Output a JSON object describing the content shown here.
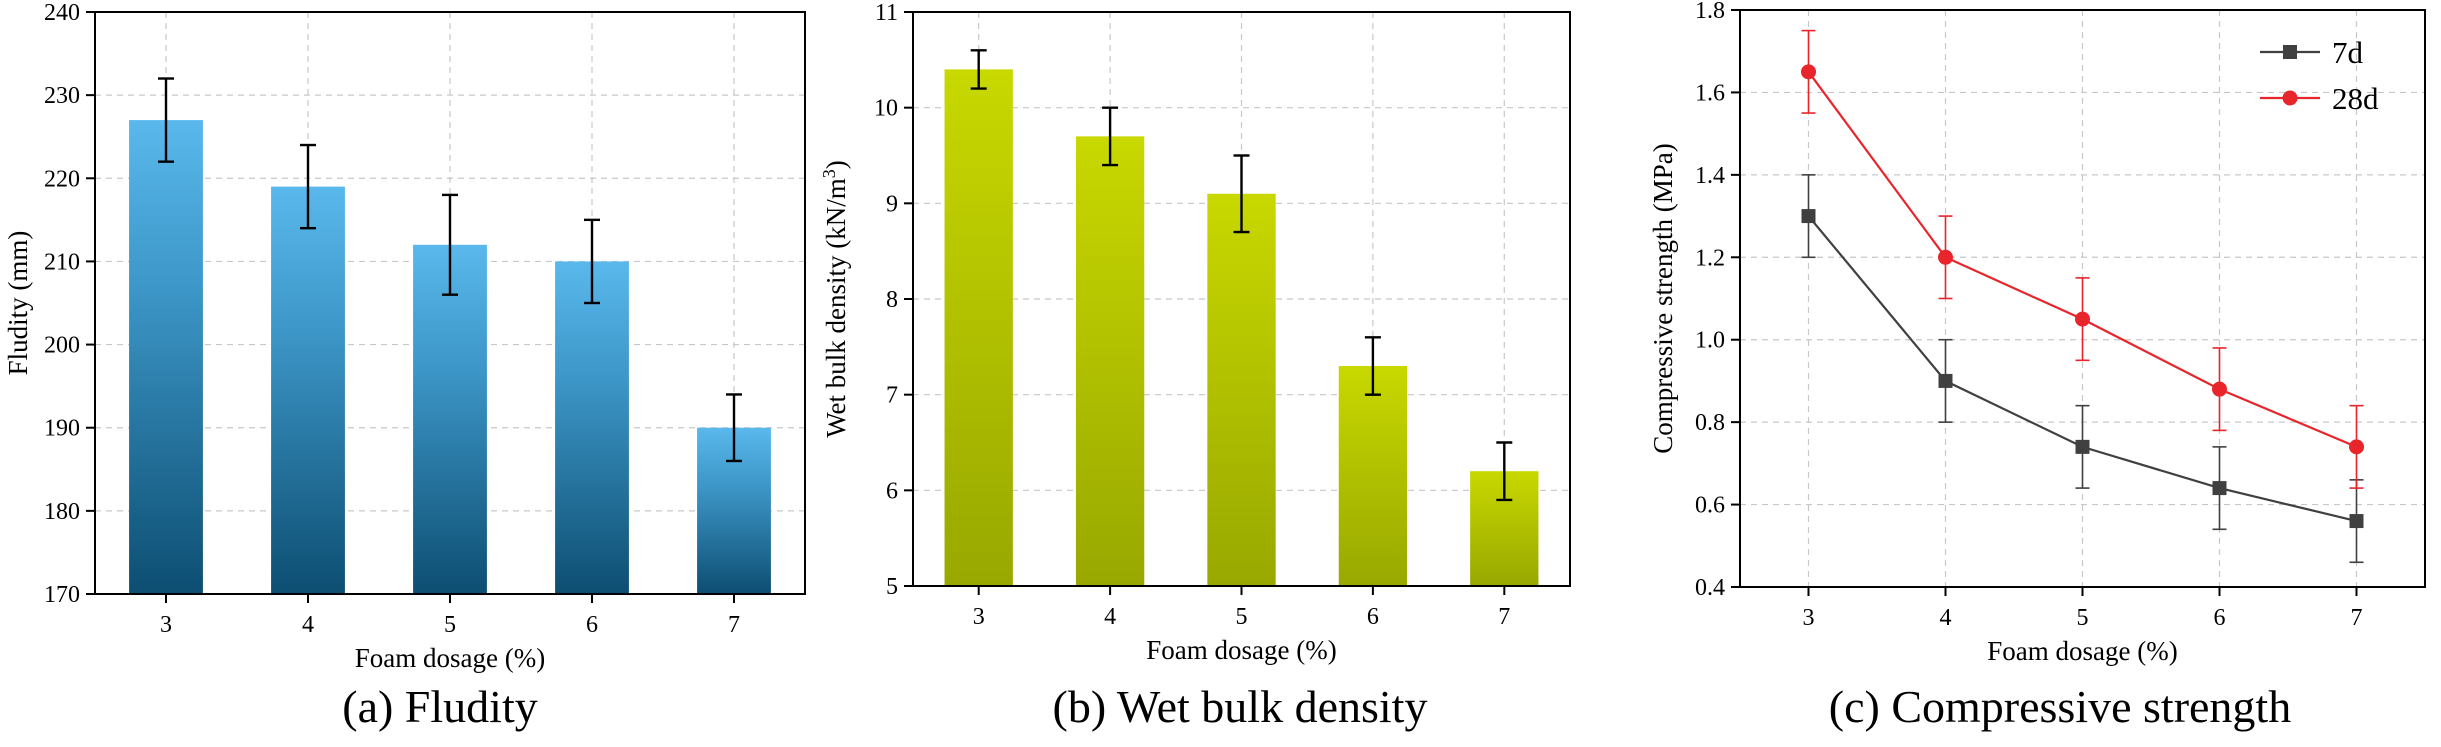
{
  "chart_data": [
    {
      "type": "bar",
      "caption": "(a) Fludity",
      "xlabel": "Foam dosage (%)",
      "ylabel": "Fludity (mm)",
      "categories": [
        "3",
        "4",
        "5",
        "6",
        "7"
      ],
      "values": [
        227,
        219,
        212,
        210,
        190
      ],
      "errors": [
        5,
        5,
        6,
        5,
        4
      ],
      "ylim": [
        170,
        240
      ],
      "yticks": [
        "170",
        "180",
        "190",
        "200",
        "210",
        "220",
        "230",
        "240"
      ],
      "grid": true,
      "colors": {
        "bar_top": "#5ab8ec",
        "bar_bottom": "#0d4e72"
      }
    },
    {
      "type": "bar",
      "caption": "(b) Wet bulk density",
      "xlabel": "Foam dosage (%)",
      "ylabel": "Wet bulk density (kN/m",
      "ylabel_sup": "3",
      "ylabel_end": ")",
      "categories": [
        "3",
        "4",
        "5",
        "6",
        "7"
      ],
      "values": [
        10.4,
        9.7,
        9.1,
        7.3,
        6.2
      ],
      "errors": [
        0.2,
        0.3,
        0.4,
        0.3,
        0.3
      ],
      "ylim": [
        5,
        11
      ],
      "yticks": [
        "5",
        "6",
        "7",
        "8",
        "9",
        "10",
        "11"
      ],
      "grid": true,
      "colors": {
        "bar_top": "#c8d800",
        "bar_bottom": "#98a800"
      }
    },
    {
      "type": "line",
      "caption": "(c) Compressive strength",
      "xlabel": "Foam dosage (%)",
      "ylabel": "Compressive strength (MPa)",
      "x": [
        3,
        4,
        5,
        6,
        7
      ],
      "xticks": [
        "3",
        "4",
        "5",
        "6",
        "7"
      ],
      "series": [
        {
          "name": "7d",
          "values": [
            1.3,
            0.9,
            0.74,
            0.64,
            0.56
          ],
          "errors": [
            0.1,
            0.1,
            0.1,
            0.1,
            0.1
          ],
          "color": "#404040",
          "marker": "square"
        },
        {
          "name": "28d",
          "values": [
            1.65,
            1.2,
            1.05,
            0.88,
            0.74
          ],
          "errors": [
            0.1,
            0.1,
            0.1,
            0.1,
            0.1
          ],
          "color": "#e8252b",
          "marker": "circle"
        }
      ],
      "ylim": [
        0.4,
        1.8
      ],
      "yticks": [
        "0.4",
        "0.6",
        "0.8",
        "1.0",
        "1.2",
        "1.4",
        "1.6",
        "1.8"
      ],
      "grid": true,
      "legend": "top-right"
    }
  ]
}
